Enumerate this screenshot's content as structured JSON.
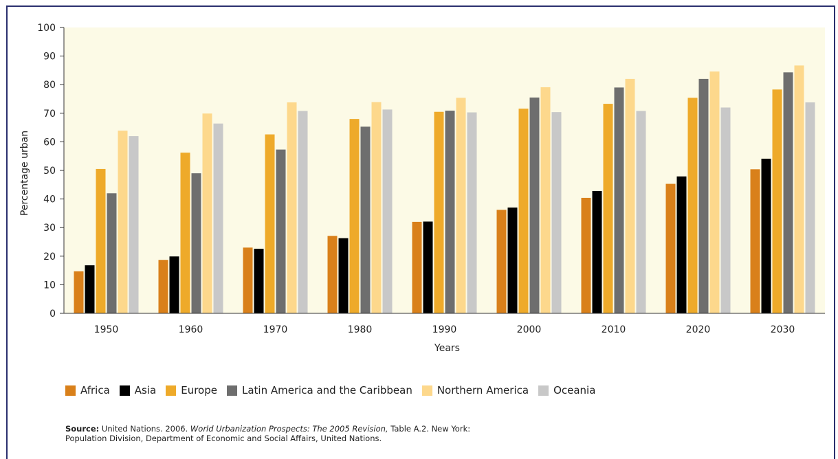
{
  "chart_data": {
    "type": "bar",
    "xlabel": "Years",
    "ylabel": "Percentage urban",
    "ylim": [
      0,
      100
    ],
    "yticks": [
      "0",
      "10",
      "20",
      "30",
      "40",
      "50",
      "60",
      "70",
      "80",
      "90",
      "100"
    ],
    "categories": [
      "1950",
      "1960",
      "1970",
      "1980",
      "1990",
      "2000",
      "2010",
      "2020",
      "2030"
    ],
    "series": [
      {
        "name": "Africa",
        "color": "#d9801a",
        "values": [
          14.7,
          18.7,
          23.0,
          27.1,
          32.0,
          36.2,
          40.4,
          45.3,
          50.4
        ]
      },
      {
        "name": "Asia",
        "color": "#000000",
        "values": [
          16.8,
          19.9,
          22.6,
          26.3,
          32.1,
          37.0,
          42.8,
          47.9,
          54.1
        ]
      },
      {
        "name": "Europe",
        "color": "#eeaa2a",
        "values": [
          50.5,
          56.2,
          62.6,
          68.0,
          70.5,
          71.6,
          73.3,
          75.4,
          78.3
        ]
      },
      {
        "name": "Latin America and the Caribbean",
        "color": "#6e6e6e",
        "values": [
          42.0,
          49.0,
          57.3,
          65.3,
          70.9,
          75.5,
          79.0,
          82.0,
          84.3
        ]
      },
      {
        "name": "Northern America",
        "color": "#fdd88c",
        "values": [
          63.9,
          69.9,
          73.8,
          73.9,
          75.4,
          79.1,
          82.0,
          84.6,
          86.7
        ]
      },
      {
        "name": "Oceania",
        "color": "#c8c8c8",
        "values": [
          62.0,
          66.4,
          70.8,
          71.3,
          70.3,
          70.4,
          70.8,
          72.0,
          73.8
        ]
      }
    ],
    "grid": false,
    "legend_position": "bottom",
    "plot_background": "#fcfae6"
  },
  "source": {
    "label": "Source:",
    "text_before": " United Nations. 2006. ",
    "title": "World Urbanization Prospects: The 2005 Revision,",
    "text_after": " Table A.2. New York:",
    "line2": "Population Division, Department of Economic and Social Affairs, United Nations."
  },
  "colors": {
    "frame_border": "#2a2f6e"
  }
}
